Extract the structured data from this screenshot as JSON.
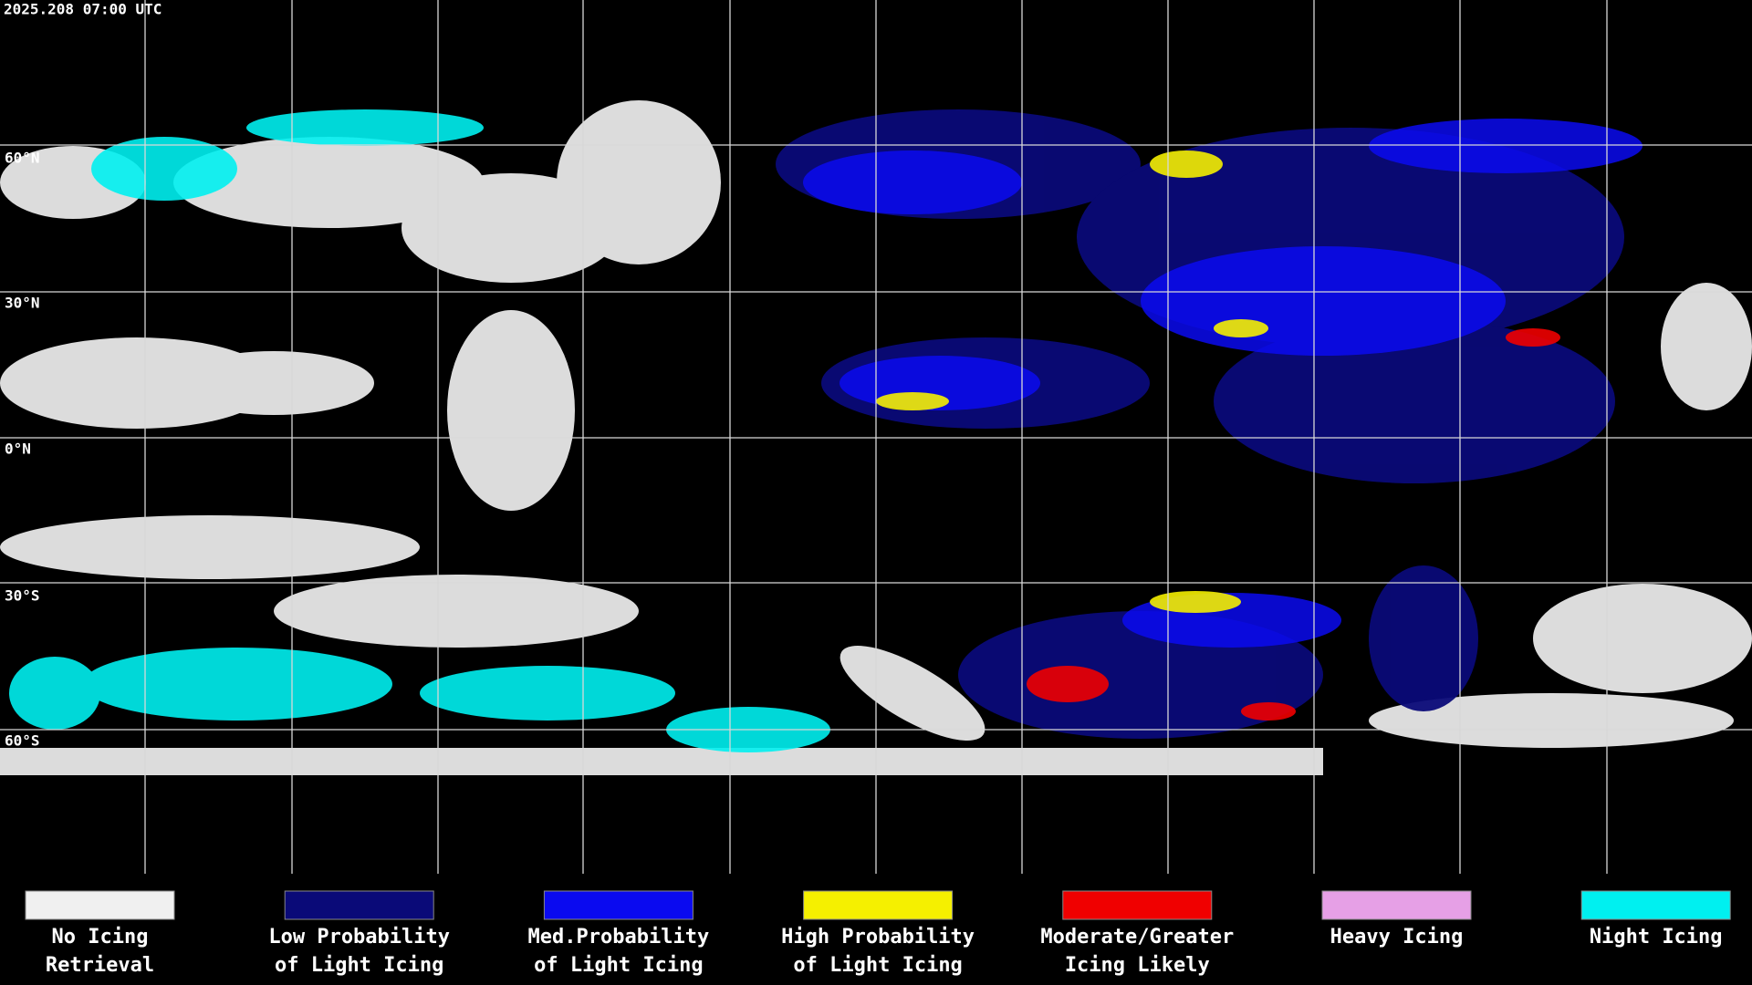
{
  "header": {
    "timestamp": "2025.208 07:00 UTC"
  },
  "map": {
    "lat_labels": [
      "60°N",
      "30°N",
      "0°N",
      "30°S",
      "60°S"
    ]
  },
  "legend": {
    "items": [
      {
        "lines": [
          "No Icing",
          "Retrieval"
        ],
        "color": "#f0f0f0"
      },
      {
        "lines": [
          "Low Probability",
          "of Light Icing"
        ],
        "color": "#0a0a78"
      },
      {
        "lines": [
          "Med.Probability",
          "of Light Icing"
        ],
        "color": "#0a0af0"
      },
      {
        "lines": [
          "High Probability",
          "of Light Icing"
        ],
        "color": "#f5f000"
      },
      {
        "lines": [
          "Moderate/Greater",
          "Icing Likely"
        ],
        "color": "#f00000"
      },
      {
        "lines": [
          "Heavy Icing"
        ],
        "color": "#e6a0e6"
      },
      {
        "lines": [
          "Night Icing"
        ],
        "color": "#00f0f0"
      }
    ]
  }
}
